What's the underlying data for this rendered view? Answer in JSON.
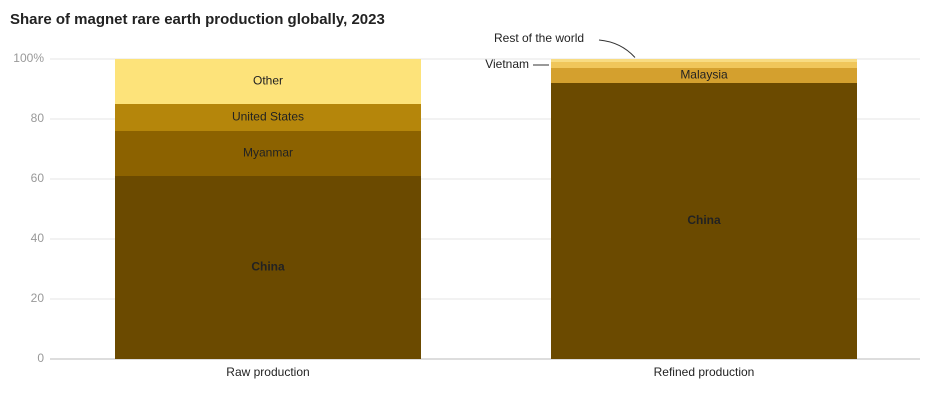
{
  "chart_data": {
    "type": "stacked_bar",
    "title": "Share of magnet rare earth production globally, 2023",
    "categories": [
      "Raw production",
      "Refined production"
    ],
    "series": [
      {
        "name": "China",
        "color": "#6b4a00",
        "values": [
          61,
          92
        ]
      },
      {
        "name": "Myanmar",
        "color": "#8c6200",
        "values": [
          15,
          null
        ]
      },
      {
        "name": "United States",
        "color": "#b5860b",
        "values": [
          9,
          null
        ]
      },
      {
        "name": "Malaysia",
        "color": "#d4a02e",
        "values": [
          null,
          5
        ]
      },
      {
        "name": "Vietnam",
        "color": "#f0c65a",
        "values": [
          null,
          2
        ]
      },
      {
        "name": "Rest of the world",
        "color": "#f8dc82",
        "values": [
          null,
          1
        ]
      },
      {
        "name": "Other",
        "color": "#fde37a",
        "values": [
          15,
          null
        ]
      }
    ],
    "ylim": [
      0,
      100
    ],
    "yticks": [
      0,
      20,
      40,
      60,
      80,
      {
        "value": 100,
        "label": "100%"
      }
    ],
    "grid": true
  }
}
